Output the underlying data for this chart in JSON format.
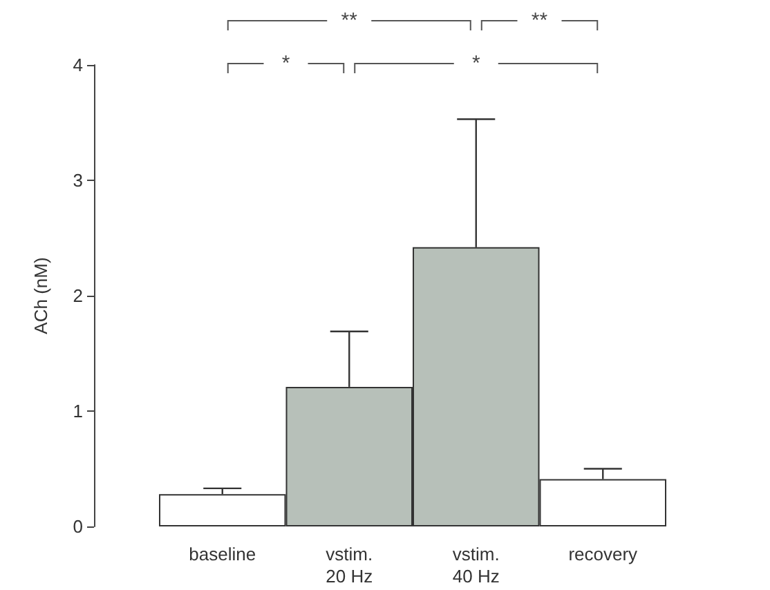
{
  "chart_data": {
    "type": "bar",
    "ylabel": "ACh (nM)",
    "categories": [
      "baseline",
      "vstim.\n20 Hz",
      "vstim.\n40 Hz",
      "recovery"
    ],
    "values": [
      0.28,
      1.21,
      2.42,
      0.41
    ],
    "colors": [
      "#ffffff",
      "#b7c0b9",
      "#b7c0b9",
      "#ffffff"
    ],
    "errors": [
      [
        0.28,
        0.33
      ],
      [
        1.21,
        1.69
      ],
      [
        2.42,
        3.53
      ],
      [
        0.41,
        0.5
      ]
    ],
    "ylim": [
      0,
      4
    ],
    "yticks": [
      0,
      1,
      2,
      3,
      4
    ],
    "grid": false,
    "annotations": [
      "**",
      "**",
      "*",
      "*"
    ]
  }
}
